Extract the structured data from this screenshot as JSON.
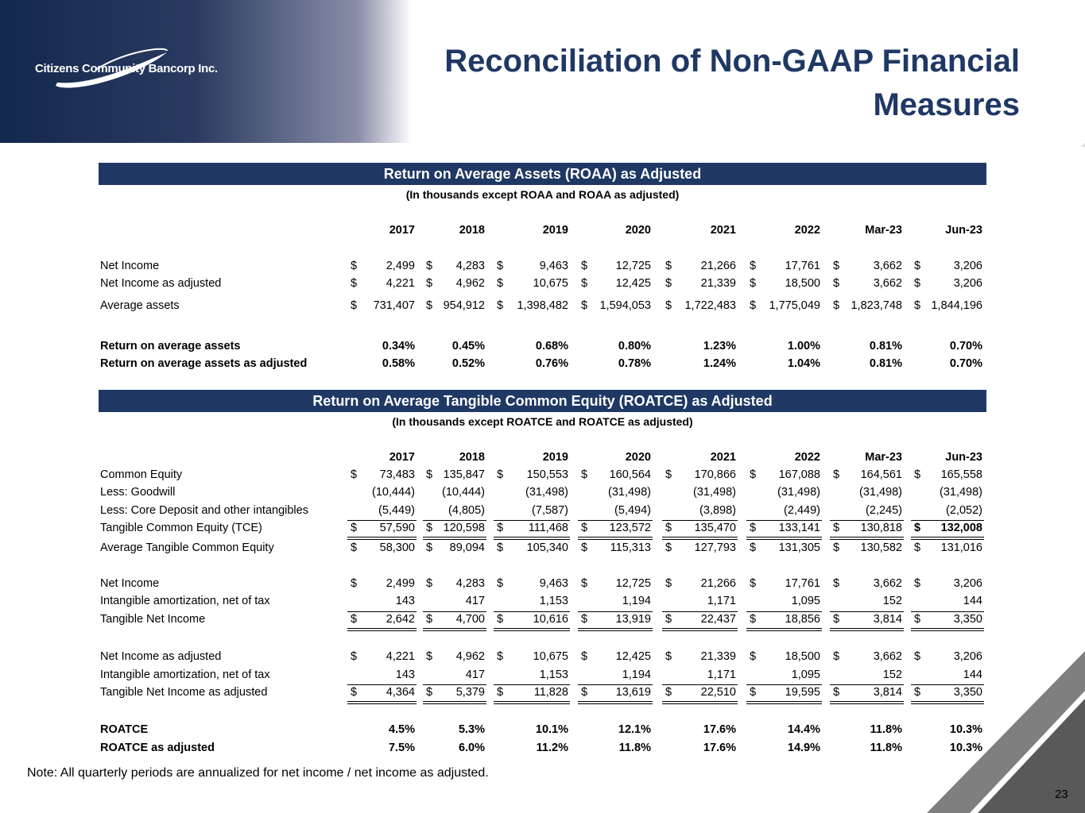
{
  "header": {
    "logo_text": "Citizens Community Bancorp Inc.",
    "title_line1": "Reconciliation of Non-GAAP Financial",
    "title_line2": "Measures"
  },
  "roaa": {
    "title": "Return on Average Assets (ROAA) as Adjusted",
    "subtitle": "(In thousands except ROAA and ROAA as adjusted)",
    "columns": [
      "2017",
      "2018",
      "2019",
      "2020",
      "2021",
      "2022",
      "Mar-23",
      "Jun-23"
    ],
    "rows": [
      {
        "label": "Net Income",
        "dollar": true,
        "values": [
          "2,499",
          "4,283",
          "9,463",
          "12,725",
          "21,266",
          "17,761",
          "3,662",
          "3,206"
        ]
      },
      {
        "label": "Net Income as adjusted",
        "dollar": true,
        "values": [
          "4,221",
          "4,962",
          "10,675",
          "12,425",
          "21,339",
          "18,500",
          "3,662",
          "3,206"
        ]
      },
      {
        "label": "Average assets",
        "dollar": true,
        "values": [
          "731,407",
          "954,912",
          "1,398,482",
          "1,594,053",
          "1,722,483",
          "1,775,049",
          "1,823,748",
          "1,844,196"
        ]
      },
      {
        "label": "Return on average assets",
        "bold": true,
        "values": [
          "0.34%",
          "0.45%",
          "0.68%",
          "0.80%",
          "1.23%",
          "1.00%",
          "0.81%",
          "0.70%"
        ]
      },
      {
        "label": "Return on average assets as adjusted",
        "bold": true,
        "values": [
          "0.58%",
          "0.52%",
          "0.76%",
          "0.78%",
          "1.24%",
          "1.04%",
          "0.81%",
          "0.70%"
        ]
      }
    ]
  },
  "roatce": {
    "title": "Return on Average Tangible Common Equity (ROATCE) as Adjusted",
    "subtitle": "(In thousands except ROATCE and ROATCE as adjusted)",
    "columns": [
      "2017",
      "2018",
      "2019",
      "2020",
      "2021",
      "2022",
      "Mar-23",
      "Jun-23"
    ],
    "rows": [
      {
        "label": "Common Equity",
        "dollar": true,
        "values": [
          "73,483",
          "135,847",
          "150,553",
          "160,564",
          "170,866",
          "167,088",
          "164,561",
          "165,558"
        ]
      },
      {
        "label": "Less: Goodwill",
        "values": [
          "(10,444)",
          "(10,444)",
          "(31,498)",
          "(31,498)",
          "(31,498)",
          "(31,498)",
          "(31,498)",
          "(31,498)"
        ]
      },
      {
        "label": "Less: Core Deposit and other intangibles",
        "values": [
          "(5,449)",
          "(4,805)",
          "(7,587)",
          "(5,494)",
          "(3,898)",
          "(2,449)",
          "(2,245)",
          "(2,052)"
        ]
      },
      {
        "label": "Tangible Common Equity (TCE)",
        "dollar": true,
        "total": true,
        "values": [
          "57,590",
          "120,598",
          "111,468",
          "123,572",
          "135,470",
          "133,141",
          "130,818",
          "132,008"
        ]
      },
      {
        "label": "Average Tangible Common Equity",
        "dollar": true,
        "values": [
          "58,300",
          "89,094",
          "105,340",
          "115,313",
          "127,793",
          "131,305",
          "130,582",
          "131,016"
        ]
      },
      {
        "label": "Net Income",
        "dollar": true,
        "values": [
          "2,499",
          "4,283",
          "9,463",
          "12,725",
          "21,266",
          "17,761",
          "3,662",
          "3,206"
        ]
      },
      {
        "label": "Intangible amortization, net of tax",
        "values": [
          "143",
          "417",
          "1,153",
          "1,194",
          "1,171",
          "1,095",
          "152",
          "144"
        ]
      },
      {
        "label": "Tangible Net Income",
        "dollar": true,
        "total": true,
        "values": [
          "2,642",
          "4,700",
          "10,616",
          "13,919",
          "22,437",
          "18,856",
          "3,814",
          "3,350"
        ]
      },
      {
        "label": "Net Income as adjusted",
        "dollar": true,
        "values": [
          "4,221",
          "4,962",
          "10,675",
          "12,425",
          "21,339",
          "18,500",
          "3,662",
          "3,206"
        ]
      },
      {
        "label": "Intangible amortization, net of tax",
        "values": [
          "143",
          "417",
          "1,153",
          "1,194",
          "1,171",
          "1,095",
          "152",
          "144"
        ]
      },
      {
        "label": "Tangible Net Income as adjusted",
        "dollar": true,
        "total": true,
        "values": [
          "4,364",
          "5,379",
          "11,828",
          "13,619",
          "22,510",
          "19,595",
          "3,814",
          "3,350"
        ]
      },
      {
        "label": "ROATCE",
        "bold": true,
        "values": [
          "4.5%",
          "5.3%",
          "10.1%",
          "12.1%",
          "17.6%",
          "14.4%",
          "11.8%",
          "10.3%"
        ]
      },
      {
        "label": "ROATCE as adjusted",
        "bold": true,
        "values": [
          "7.5%",
          "6.0%",
          "11.2%",
          "11.8%",
          "17.6%",
          "14.9%",
          "11.8%",
          "10.3%"
        ]
      }
    ]
  },
  "dollar_sign": "$",
  "footer": {
    "note": "Note: All quarterly periods are annualized for net income / net income as adjusted.",
    "page_number": "23"
  },
  "colors": {
    "navy": "#1f3864"
  }
}
